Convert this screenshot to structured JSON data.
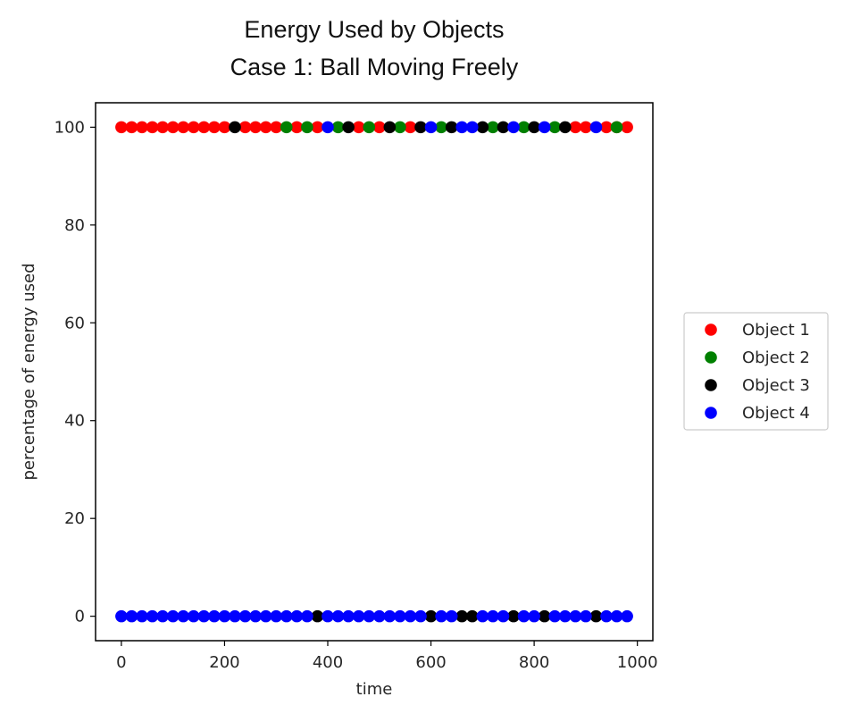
{
  "chart_data": {
    "type": "scatter",
    "title_lines": [
      "Energy Used by Objects",
      "Case 1:  Ball Moving Freely"
    ],
    "xlabel": "time",
    "ylabel": "percentage of energy used",
    "xlim": [
      -50,
      1030
    ],
    "ylim": [
      -5,
      105
    ],
    "xticks": [
      0,
      200,
      400,
      600,
      800,
      1000
    ],
    "yticks": [
      0,
      20,
      40,
      60,
      80,
      100
    ],
    "grid": false,
    "legend_position": "right",
    "series": [
      {
        "name": "Object 1",
        "color": "#ff0000",
        "points": [
          [
            0,
            100
          ],
          [
            20,
            100
          ],
          [
            40,
            100
          ],
          [
            60,
            100
          ],
          [
            80,
            100
          ],
          [
            100,
            100
          ],
          [
            120,
            100
          ],
          [
            140,
            100
          ],
          [
            160,
            100
          ],
          [
            180,
            100
          ],
          [
            200,
            100
          ],
          [
            240,
            100
          ],
          [
            260,
            100
          ],
          [
            280,
            100
          ],
          [
            300,
            100
          ],
          [
            340,
            100
          ],
          [
            380,
            100
          ],
          [
            460,
            100
          ],
          [
            500,
            100
          ],
          [
            560,
            100
          ],
          [
            900,
            100
          ],
          [
            880,
            100
          ],
          [
            940,
            100
          ],
          [
            960,
            100
          ],
          [
            980,
            100
          ]
        ]
      },
      {
        "name": "Object 2",
        "color": "#008000",
        "points": [
          [
            320,
            100
          ],
          [
            360,
            100
          ],
          [
            420,
            100
          ],
          [
            480,
            100
          ],
          [
            540,
            100
          ],
          [
            620,
            100
          ],
          [
            720,
            100
          ],
          [
            780,
            100
          ],
          [
            840,
            100
          ],
          [
            960,
            100
          ]
        ]
      },
      {
        "name": "Object 3",
        "color": "#000000",
        "points": [
          [
            220,
            100
          ],
          [
            440,
            100
          ],
          [
            520,
            100
          ],
          [
            580,
            100
          ],
          [
            640,
            100
          ],
          [
            700,
            100
          ],
          [
            740,
            100
          ],
          [
            800,
            100
          ],
          [
            860,
            100
          ],
          [
            380,
            0
          ],
          [
            600,
            0
          ],
          [
            660,
            0
          ],
          [
            680,
            0
          ],
          [
            760,
            0
          ],
          [
            820,
            0
          ],
          [
            920,
            0
          ]
        ]
      },
      {
        "name": "Object 4",
        "color": "#0000ff",
        "points": [
          [
            400,
            100
          ],
          [
            600,
            100
          ],
          [
            660,
            100
          ],
          [
            680,
            100
          ],
          [
            760,
            100
          ],
          [
            820,
            100
          ],
          [
            920,
            100
          ],
          [
            0,
            0
          ],
          [
            20,
            0
          ],
          [
            40,
            0
          ],
          [
            60,
            0
          ],
          [
            80,
            0
          ],
          [
            100,
            0
          ],
          [
            120,
            0
          ],
          [
            140,
            0
          ],
          [
            160,
            0
          ],
          [
            180,
            0
          ],
          [
            200,
            0
          ],
          [
            220,
            0
          ],
          [
            240,
            0
          ],
          [
            260,
            0
          ],
          [
            280,
            0
          ],
          [
            300,
            0
          ],
          [
            320,
            0
          ],
          [
            340,
            0
          ],
          [
            360,
            0
          ],
          [
            400,
            0
          ],
          [
            420,
            0
          ],
          [
            440,
            0
          ],
          [
            460,
            0
          ],
          [
            480,
            0
          ],
          [
            500,
            0
          ],
          [
            520,
            0
          ],
          [
            540,
            0
          ],
          [
            560,
            0
          ],
          [
            580,
            0
          ],
          [
            620,
            0
          ],
          [
            640,
            0
          ],
          [
            700,
            0
          ],
          [
            720,
            0
          ],
          [
            740,
            0
          ],
          [
            780,
            0
          ],
          [
            800,
            0
          ],
          [
            840,
            0
          ],
          [
            860,
            0
          ],
          [
            880,
            0
          ],
          [
            900,
            0
          ],
          [
            940,
            0
          ],
          [
            960,
            0
          ],
          [
            980,
            0
          ]
        ]
      }
    ]
  }
}
